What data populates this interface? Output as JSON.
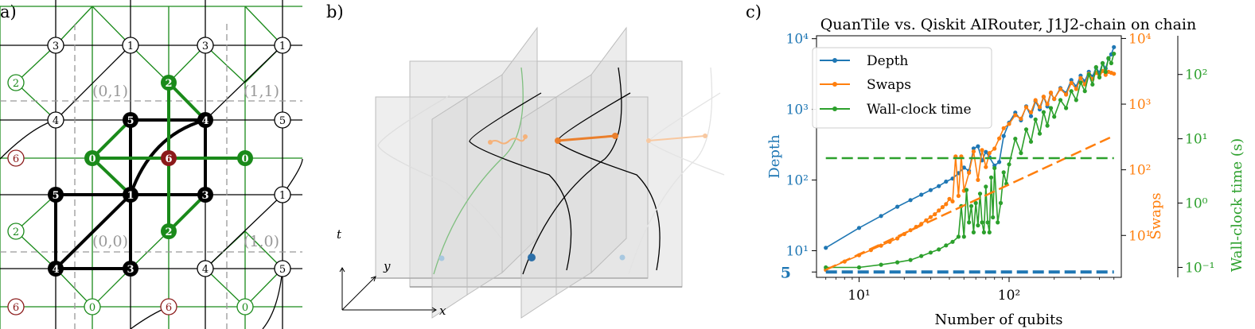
{
  "panels": {
    "a_label": "a)",
    "b_label": "b)",
    "c_label": "c)"
  },
  "panel_a": {
    "cell_labels": [
      "(0,1)",
      "(1,1)",
      "(0,0)",
      "(1,0)"
    ],
    "nodes_black": [
      "5",
      "4",
      "1",
      "5",
      "3",
      "4",
      "3"
    ],
    "nodes_white": [
      "3",
      "1",
      "3",
      "1",
      "4",
      "5",
      "1",
      "4",
      "5"
    ],
    "nodes_green_filled": [
      "0",
      "2",
      "0",
      "2"
    ],
    "nodes_green_hollow": [
      "2",
      "2",
      "0",
      "0"
    ],
    "nodes_red_filled": [
      "6"
    ],
    "nodes_red_hollow": [
      "6",
      "6",
      "6"
    ]
  },
  "panel_b": {
    "axis_t": "t",
    "axis_y": "y",
    "axis_x": "x"
  },
  "colors": {
    "depth": "#1f77b4",
    "swaps": "#ff7f0e",
    "wallclock": "#2ca02c",
    "green_graph": "#1a8a1a",
    "red_node": "#8b1a1a"
  },
  "chart_data": {
    "type": "line",
    "title": "QuanTile vs. Qiskit AIRouter, J1J2-chain on chain",
    "xlabel": "Number of qubits",
    "x_scale": "log",
    "xlim": [
      5.2,
      560
    ],
    "x_ticks": [
      "10¹",
      "10²"
    ],
    "y_axes": {
      "depth": {
        "label": "Depth",
        "scale": "log",
        "lim": [
          4.2,
          11000
        ],
        "ticks": [
          "10¹",
          "10²",
          "10³",
          "10⁴"
        ],
        "extra_tick": "5"
      },
      "swaps": {
        "label": "Swaps",
        "scale": "log",
        "lim": [
          2.3,
          11000
        ],
        "ticks": [
          "10¹",
          "10²",
          "10³",
          "10⁴"
        ]
      },
      "wallclock": {
        "label": "Wall-clock time (s)",
        "scale": "log",
        "lim": [
          0.07,
          400
        ],
        "ticks": [
          "10⁻¹",
          "10⁰",
          "10¹",
          "10²"
        ]
      }
    },
    "legend": {
      "position": "top-left",
      "entries": [
        "Depth",
        "Swaps",
        "Wall-clock time"
      ]
    },
    "series": [
      {
        "name": "Depth",
        "axis": "depth",
        "color": "#1f77b4",
        "x": [
          6,
          10,
          14,
          18,
          22,
          26,
          30,
          34,
          38,
          42,
          46,
          50,
          54,
          58,
          62,
          66,
          70,
          74,
          80,
          86,
          92,
          100,
          110,
          120,
          130,
          140,
          150,
          160,
          170,
          180,
          190,
          200,
          220,
          240,
          260,
          280,
          300,
          320,
          340,
          360,
          380,
          400,
          420,
          440,
          460,
          480,
          500
        ],
        "y": [
          11,
          21,
          31,
          42,
          52,
          62,
          72,
          82,
          95,
          105,
          125,
          150,
          135,
          280,
          300,
          190,
          250,
          210,
          160,
          180,
          420,
          650,
          900,
          700,
          1100,
          800,
          1300,
          1000,
          1500,
          1100,
          1700,
          1400,
          2000,
          1700,
          2600,
          2100,
          3000,
          2500,
          3400,
          2900,
          3900,
          3300,
          4500,
          3800,
          5200,
          6000,
          7600
        ]
      },
      {
        "name": "Swaps",
        "axis": "swaps",
        "color": "#ff7f0e",
        "x": [
          6,
          8,
          10,
          12,
          14,
          16,
          18,
          20,
          22,
          24,
          26,
          28,
          30,
          32,
          34,
          36,
          38,
          40,
          42,
          44,
          46,
          48,
          50,
          54,
          58,
          62,
          66,
          70,
          74,
          80,
          86,
          92,
          100,
          110,
          120,
          130,
          140,
          150,
          160,
          170,
          180,
          190,
          200,
          220,
          240,
          260,
          280,
          300,
          320,
          340,
          360,
          380,
          400,
          420,
          440,
          460,
          480,
          500
        ],
        "y": [
          3,
          4,
          5,
          6,
          7,
          8,
          9,
          10.5,
          12,
          13.5,
          15,
          17,
          19,
          21,
          24,
          27,
          30,
          36,
          33,
          160,
          40,
          160,
          48,
          90,
          190,
          70,
          200,
          110,
          180,
          210,
          300,
          430,
          500,
          680,
          600,
          900,
          750,
          1150,
          900,
          1300,
          1000,
          1500,
          1200,
          1700,
          1400,
          2100,
          1700,
          2500,
          2000,
          2900,
          2400,
          3000,
          2600,
          3200,
          2800,
          3100,
          3000,
          2900
        ]
      },
      {
        "name": "Wall-clock time",
        "axis": "wallclock",
        "color": "#2ca02c",
        "x": [
          6,
          10,
          14,
          18,
          22,
          26,
          30,
          34,
          38,
          42,
          46,
          48,
          50,
          52,
          54,
          56,
          58,
          60,
          62,
          64,
          66,
          68,
          70,
          72,
          74,
          76,
          78,
          80,
          84,
          88,
          92,
          96,
          100,
          110,
          120,
          130,
          140,
          150,
          160,
          170,
          180,
          190,
          200,
          220,
          240,
          260,
          280,
          300,
          320,
          340,
          360,
          380,
          400,
          420,
          440,
          460,
          480,
          500
        ],
        "y": [
          0.1,
          0.1,
          0.11,
          0.12,
          0.13,
          0.15,
          0.17,
          0.19,
          0.22,
          0.25,
          0.3,
          0.9,
          0.3,
          1.6,
          0.5,
          0.9,
          0.35,
          1.0,
          0.45,
          1.4,
          0.5,
          0.35,
          1.8,
          0.5,
          0.35,
          2.5,
          0.6,
          3.5,
          0.5,
          1.0,
          3.0,
          2.0,
          4.0,
          10,
          6,
          14,
          9,
          20,
          12,
          26,
          16,
          30,
          22,
          40,
          30,
          55,
          40,
          75,
          55,
          100,
          70,
          130,
          90,
          150,
          110,
          180,
          150,
          210
        ]
      },
      {
        "name": "",
        "axis": "depth",
        "color": "#1f77b4",
        "dashed": true,
        "x": [
          6,
          500
        ],
        "y": [
          5,
          5
        ]
      },
      {
        "name": "",
        "axis": "swaps",
        "color": "#ff7f0e",
        "dashed": true,
        "x": [
          6,
          500
        ],
        "y": [
          3,
          330
        ]
      },
      {
        "name": "",
        "axis": "wallclock",
        "color": "#2ca02c",
        "dashed": true,
        "x": [
          6,
          500
        ],
        "y": [
          5,
          5
        ]
      }
    ]
  }
}
